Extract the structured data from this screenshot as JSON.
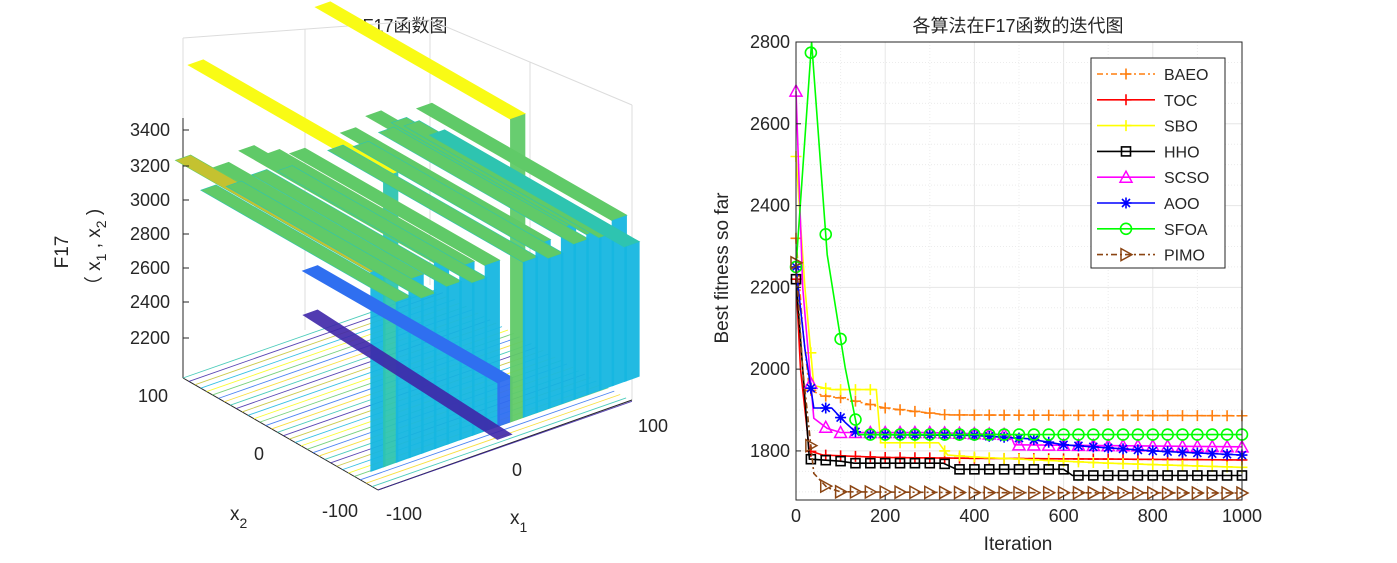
{
  "chart_data": [
    {
      "type": "surface",
      "title": "F17函数图",
      "xlabel": "x",
      "xlabel_sub": "1",
      "ylabel": "x",
      "ylabel_sub": "2",
      "zlabel_line1": "F17",
      "zlabel_line2_parts": [
        "（ x",
        "1",
        " , x",
        "2",
        " )"
      ],
      "x_ticks": [
        "-100",
        "0",
        "100"
      ],
      "y_ticks": [
        "-100",
        "0",
        "100"
      ],
      "z_ticks": [
        "2200",
        "2400",
        "2600",
        "2800",
        "3000",
        "3200",
        "3400"
      ],
      "xlim": [
        -100,
        100
      ],
      "ylim": [
        -100,
        100
      ],
      "zlim": [
        2100,
        3450
      ],
      "colormap": [
        "#3e26a8",
        "#2f6ff0",
        "#16b6e0",
        "#2ec4b0",
        "#60ca68",
        "#c4c230",
        "#f7da22",
        "#f9fb15"
      ],
      "ridge_x": [
        -100,
        -90,
        -80,
        -70,
        -60,
        -50,
        -40,
        -30,
        -20,
        -10,
        0,
        10,
        20,
        30,
        40,
        50,
        60,
        70,
        80,
        90,
        100
      ],
      "ridge_z": [
        2950,
        3300,
        2800,
        2870,
        2780,
        2900,
        2790,
        2850,
        2770,
        2820,
        2350,
        3350,
        2780,
        2830,
        2760,
        2860,
        2780,
        2800,
        2770,
        2820,
        2700
      ]
    },
    {
      "type": "line",
      "title": "各算法在F17函数的迭代图",
      "xlabel": "Iteration",
      "ylabel": "Best fitness so far",
      "xlim": [
        0,
        1000
      ],
      "ylim": [
        1680,
        2800
      ],
      "x_ticks": [
        0,
        200,
        400,
        600,
        800,
        1000
      ],
      "y_ticks": [
        1800,
        2000,
        2200,
        2400,
        2600,
        2800
      ],
      "grid": "on",
      "legend": "top-right",
      "series": [
        {
          "name": "BAEO",
          "color": "#ff7f0e",
          "marker": "plus",
          "dash": "6,3,2,3",
          "points": [
            [
              0,
              2320
            ],
            [
              15,
              2100
            ],
            [
              30,
              1950
            ],
            [
              60,
              1935
            ],
            [
              100,
              1930
            ],
            [
              140,
              1920
            ],
            [
              200,
              1905
            ],
            [
              280,
              1895
            ],
            [
              340,
              1888
            ],
            [
              1000,
              1886
            ]
          ]
        },
        {
          "name": "TOC",
          "color": "#ff0000",
          "marker": "plus",
          "dash": "",
          "points": [
            [
              0,
              2220
            ],
            [
              10,
              2000
            ],
            [
              30,
              1800
            ],
            [
              60,
              1790
            ],
            [
              100,
              1788
            ],
            [
              200,
              1784
            ],
            [
              400,
              1782
            ],
            [
              700,
              1780
            ],
            [
              1000,
              1778
            ]
          ]
        },
        {
          "name": "SBO",
          "color": "#ffff00",
          "marker": "plus",
          "dash": "",
          "points": [
            [
              0,
              2520
            ],
            [
              20,
              2200
            ],
            [
              40,
              1960
            ],
            [
              80,
              1950
            ],
            [
              180,
              1950
            ],
            [
              190,
              1820
            ],
            [
              320,
              1820
            ],
            [
              340,
              1790
            ],
            [
              400,
              1785
            ],
            [
              700,
              1770
            ],
            [
              1000,
              1760
            ]
          ]
        },
        {
          "name": "HHO",
          "color": "#000000",
          "marker": "square",
          "dash": "",
          "points": [
            [
              0,
              2220
            ],
            [
              15,
              2000
            ],
            [
              30,
              1780
            ],
            [
              100,
              1775
            ],
            [
              130,
              1770
            ],
            [
              330,
              1770
            ],
            [
              360,
              1755
            ],
            [
              600,
              1755
            ],
            [
              620,
              1740
            ],
            [
              1000,
              1740
            ]
          ]
        },
        {
          "name": "SCSO",
          "color": "#ff00ff",
          "marker": "triangle",
          "dash": "",
          "points": [
            [
              0,
              2680
            ],
            [
              15,
              2200
            ],
            [
              40,
              1880
            ],
            [
              70,
              1855
            ],
            [
              100,
              1845
            ],
            [
              300,
              1845
            ],
            [
              480,
              1840
            ],
            [
              490,
              1815
            ],
            [
              1000,
              1810
            ]
          ]
        },
        {
          "name": "AOO",
          "color": "#0000ff",
          "marker": "star",
          "dash": "",
          "points": [
            [
              0,
              2250
            ],
            [
              20,
              2050
            ],
            [
              40,
              1905
            ],
            [
              80,
              1905
            ],
            [
              110,
              1870
            ],
            [
              140,
              1840
            ],
            [
              400,
              1838
            ],
            [
              520,
              1830
            ],
            [
              600,
              1815
            ],
            [
              800,
              1800
            ],
            [
              1000,
              1790
            ]
          ]
        },
        {
          "name": "SFOA",
          "color": "#00ff00",
          "marker": "circle",
          "dash": "",
          "points": [
            [
              0,
              2250
            ],
            [
              35,
              2800
            ],
            [
              70,
              2280
            ],
            [
              110,
              2005
            ],
            [
              140,
              1840
            ],
            [
              500,
              1840
            ],
            [
              1000,
              1840
            ]
          ]
        },
        {
          "name": "PIMO",
          "color": "#8b4513",
          "marker": "triangle-right",
          "dash": "6,3,2,3",
          "points": [
            [
              0,
              2260
            ],
            [
              15,
              2000
            ],
            [
              40,
              1745
            ],
            [
              70,
              1710
            ],
            [
              100,
              1700
            ],
            [
              400,
              1698
            ],
            [
              1000,
              1697
            ]
          ]
        }
      ]
    }
  ]
}
